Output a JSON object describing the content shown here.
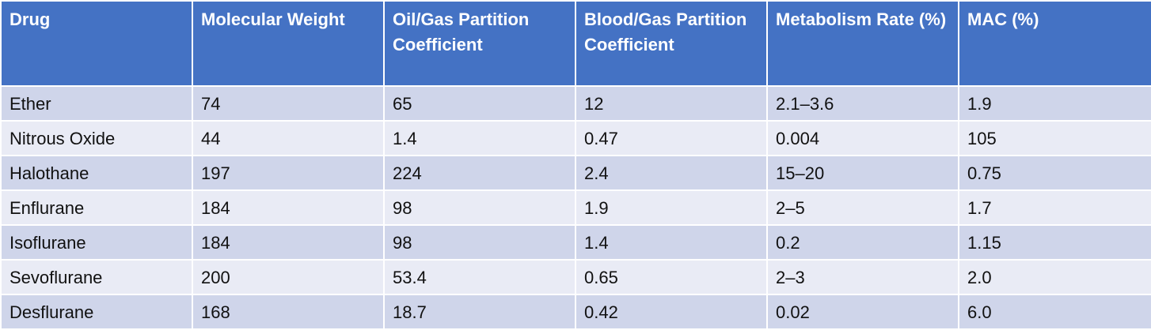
{
  "table": {
    "headers": [
      "Drug",
      "Molecular Weight",
      "Oil/Gas Partition Coefficient",
      "Blood/Gas Partition Coefficient",
      "Metabolism Rate (%)",
      "MAC (%)"
    ],
    "rows": [
      [
        "Ether",
        "74",
        "65",
        "12",
        "2.1–3.6",
        "1.9"
      ],
      [
        "Nitrous Oxide",
        "44",
        "1.4",
        "0.47",
        "0.004",
        "105"
      ],
      [
        "Halothane",
        "197",
        "224",
        "2.4",
        "15–20",
        "0.75"
      ],
      [
        "Enflurane",
        "184",
        "98",
        "1.9",
        "2–5",
        "1.7"
      ],
      [
        "Isoflurane",
        "184",
        "98",
        "1.4",
        "0.2",
        "1.15"
      ],
      [
        "Sevoflurane",
        "200",
        "53.4",
        "0.65",
        "2–3",
        "2.0"
      ],
      [
        "Desflurane",
        "168",
        "18.7",
        "0.42",
        "0.02",
        "6.0"
      ]
    ]
  },
  "colors": {
    "header_bg": "#4472c4",
    "row_odd_bg": "#cfd5ea",
    "row_even_bg": "#e9ebf5"
  }
}
